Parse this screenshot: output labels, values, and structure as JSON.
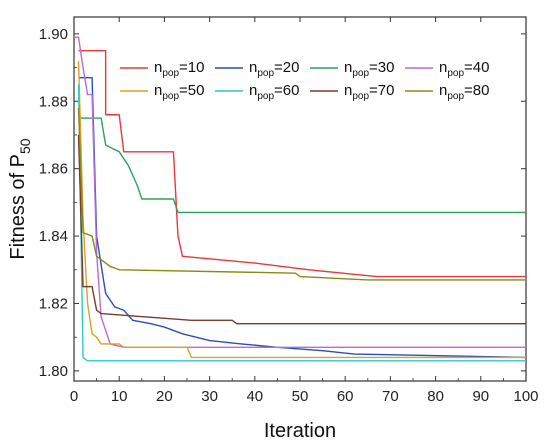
{
  "chart_data": {
    "type": "line",
    "title": "",
    "xlabel": "Iteration",
    "ylabel": {
      "main": "Fitness of P",
      "sub": "50"
    },
    "xlim": [
      0,
      100
    ],
    "ylim": [
      1.797,
      1.905
    ],
    "xticks": [
      0,
      10,
      20,
      30,
      40,
      50,
      60,
      70,
      80,
      90,
      100
    ],
    "yticks": [
      1.8,
      1.82,
      1.84,
      1.86,
      1.88,
      1.9
    ],
    "ytick_labels": [
      "1.80",
      "1.82",
      "1.84",
      "1.86",
      "1.88",
      "1.90"
    ],
    "grid": false,
    "legend": "top-right",
    "legend_columns": 4,
    "series": [
      {
        "name": "n_pop=10",
        "label_main": "n",
        "label_sub": "pop",
        "label_rest": "=10",
        "color": "#e8383b",
        "points": [
          [
            1,
            1.895
          ],
          [
            7,
            1.895
          ],
          [
            7,
            1.876
          ],
          [
            10,
            1.876
          ],
          [
            11,
            1.865
          ],
          [
            22,
            1.865
          ],
          [
            23,
            1.84
          ],
          [
            24,
            1.834
          ],
          [
            32,
            1.833
          ],
          [
            40,
            1.832
          ],
          [
            52,
            1.83
          ],
          [
            67,
            1.828
          ],
          [
            100,
            1.828
          ]
        ]
      },
      {
        "name": "n_pop=20",
        "label_main": "n",
        "label_sub": "pop",
        "label_rest": "=20",
        "color": "#2a4fb8",
        "points": [
          [
            1,
            1.887
          ],
          [
            4,
            1.887
          ],
          [
            5,
            1.84
          ],
          [
            7,
            1.823
          ],
          [
            9,
            1.819
          ],
          [
            11,
            1.818
          ],
          [
            13,
            1.815
          ],
          [
            17,
            1.814
          ],
          [
            20,
            1.813
          ],
          [
            24,
            1.811
          ],
          [
            30,
            1.809
          ],
          [
            37,
            1.808
          ],
          [
            45,
            1.807
          ],
          [
            55,
            1.806
          ],
          [
            62,
            1.805
          ],
          [
            100,
            1.804
          ]
        ]
      },
      {
        "name": "n_pop=30",
        "label_main": "n",
        "label_sub": "pop",
        "label_rest": "=30",
        "color": "#2aa35f",
        "points": [
          [
            1,
            1.875
          ],
          [
            6,
            1.875
          ],
          [
            7,
            1.867
          ],
          [
            10,
            1.865
          ],
          [
            12,
            1.861
          ],
          [
            14,
            1.855
          ],
          [
            15,
            1.851
          ],
          [
            22,
            1.851
          ],
          [
            23,
            1.847
          ],
          [
            70,
            1.847
          ],
          [
            100,
            1.847
          ]
        ]
      },
      {
        "name": "n_pop=40",
        "label_main": "n",
        "label_sub": "pop",
        "label_rest": "=40",
        "color": "#b86ad9",
        "points": [
          [
            0,
            1.899
          ],
          [
            1,
            1.899
          ],
          [
            2,
            1.89
          ],
          [
            3,
            1.882
          ],
          [
            4,
            1.882
          ],
          [
            5,
            1.835
          ],
          [
            6,
            1.816
          ],
          [
            7,
            1.812
          ],
          [
            8,
            1.808
          ],
          [
            11,
            1.807
          ],
          [
            100,
            1.807
          ]
        ]
      },
      {
        "name": "n_pop=50",
        "label_main": "n",
        "label_sub": "pop",
        "label_rest": "=50",
        "color": "#e0a020",
        "points": [
          [
            1,
            1.892
          ],
          [
            2,
            1.845
          ],
          [
            3,
            1.82
          ],
          [
            4,
            1.811
          ],
          [
            5,
            1.81
          ],
          [
            6,
            1.808
          ],
          [
            10,
            1.808
          ],
          [
            11,
            1.807
          ],
          [
            25,
            1.807
          ],
          [
            26,
            1.804
          ],
          [
            100,
            1.804
          ]
        ]
      },
      {
        "name": "n_pop=60",
        "label_main": "n",
        "label_sub": "pop",
        "label_rest": "=60",
        "color": "#2bc9cc",
        "points": [
          [
            1,
            1.885
          ],
          [
            2,
            1.804
          ],
          [
            3,
            1.803
          ],
          [
            100,
            1.803
          ]
        ]
      },
      {
        "name": "n_pop=70",
        "label_main": "n",
        "label_sub": "pop",
        "label_rest": "=70",
        "color": "#7a3b30",
        "points": [
          [
            1,
            1.87
          ],
          [
            2,
            1.825
          ],
          [
            4,
            1.825
          ],
          [
            5,
            1.818
          ],
          [
            6,
            1.817
          ],
          [
            16,
            1.816
          ],
          [
            26,
            1.815
          ],
          [
            35,
            1.815
          ],
          [
            36,
            1.814
          ],
          [
            100,
            1.814
          ]
        ]
      },
      {
        "name": "n_pop=80",
        "label_main": "n",
        "label_sub": "pop",
        "label_rest": "=80",
        "color": "#8a8a18",
        "points": [
          [
            1,
            1.878
          ],
          [
            2,
            1.841
          ],
          [
            4,
            1.84
          ],
          [
            5,
            1.834
          ],
          [
            8,
            1.831
          ],
          [
            10,
            1.83
          ],
          [
            49,
            1.829
          ],
          [
            50,
            1.828
          ],
          [
            65,
            1.827
          ],
          [
            100,
            1.827
          ]
        ]
      }
    ]
  }
}
